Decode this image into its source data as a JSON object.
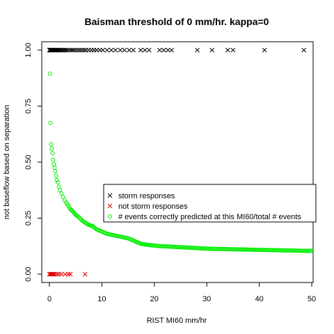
{
  "chart_data": {
    "type": "scatter",
    "title": "Baisman threshold of 0 mm/hr. kappa=0",
    "xlabel": "RIST MI60 mm/hr",
    "ylabel": "not baseflow based on separation",
    "xlim": [
      0,
      50
    ],
    "ylim": [
      0,
      1
    ],
    "x_ticks": [
      0,
      10,
      20,
      30,
      40,
      50
    ],
    "y_ticks": [
      "0.00",
      "0.25",
      "0.50",
      "0.75",
      "1.00"
    ],
    "legend_position": "right",
    "series": [
      {
        "name": "storm responses",
        "marker": "x",
        "color": "#000000",
        "points": [
          [
            0.0,
            1
          ],
          [
            0.1,
            1
          ],
          [
            0.2,
            1
          ],
          [
            0.3,
            1
          ],
          [
            0.4,
            1
          ],
          [
            0.5,
            1
          ],
          [
            0.6,
            1
          ],
          [
            0.8,
            1
          ],
          [
            1.0,
            1
          ],
          [
            1.2,
            1
          ],
          [
            1.4,
            1
          ],
          [
            1.6,
            1
          ],
          [
            1.8,
            1
          ],
          [
            2.0,
            1
          ],
          [
            2.2,
            1
          ],
          [
            2.5,
            1
          ],
          [
            2.8,
            1
          ],
          [
            3.0,
            1
          ],
          [
            3.3,
            1
          ],
          [
            3.6,
            1
          ],
          [
            4.0,
            1
          ],
          [
            4.3,
            1
          ],
          [
            4.6,
            1
          ],
          [
            5.0,
            1
          ],
          [
            5.4,
            1
          ],
          [
            5.8,
            1
          ],
          [
            6.2,
            1
          ],
          [
            6.6,
            1
          ],
          [
            7.0,
            1
          ],
          [
            7.5,
            1
          ],
          [
            8.0,
            1
          ],
          [
            8.5,
            1
          ],
          [
            9.0,
            1
          ],
          [
            9.6,
            1
          ],
          [
            10.2,
            1
          ],
          [
            11.0,
            1
          ],
          [
            11.8,
            1
          ],
          [
            12.6,
            1
          ],
          [
            13.5,
            1
          ],
          [
            14.3,
            1
          ],
          [
            15.2,
            1
          ],
          [
            16.0,
            1
          ],
          [
            17.4,
            1
          ],
          [
            18.2,
            1
          ],
          [
            19.0,
            1
          ],
          [
            21.0,
            1
          ],
          [
            21.8,
            1
          ],
          [
            22.6,
            1
          ],
          [
            23.3,
            1
          ],
          [
            28.2,
            1
          ],
          [
            31.0,
            1
          ],
          [
            34.0,
            1
          ],
          [
            35.0,
            1
          ],
          [
            41.0,
            1
          ],
          [
            48.5,
            1
          ]
        ]
      },
      {
        "name": "not storm responses",
        "marker": "x",
        "color": "#dd0000",
        "points": [
          [
            0.0,
            0
          ],
          [
            0.2,
            0
          ],
          [
            0.4,
            0
          ],
          [
            0.6,
            0
          ],
          [
            0.8,
            0
          ],
          [
            1.0,
            0
          ],
          [
            1.4,
            0
          ],
          [
            1.8,
            0
          ],
          [
            2.3,
            0
          ],
          [
            3.0,
            0
          ],
          [
            3.6,
            0
          ],
          [
            4.0,
            0
          ],
          [
            6.8,
            0
          ]
        ]
      },
      {
        "name": "# events correctly predicted at this MI60/total # events",
        "marker": "circle",
        "color": "#00ee00",
        "points": [
          [
            0.1,
            0.895
          ],
          [
            0.2,
            0.675
          ],
          [
            0.35,
            0.58
          ],
          [
            0.45,
            0.56
          ],
          [
            0.6,
            0.54
          ],
          [
            0.7,
            0.51
          ],
          [
            0.85,
            0.49
          ],
          [
            1.0,
            0.475
          ],
          [
            1.1,
            0.46
          ],
          [
            1.25,
            0.44
          ],
          [
            1.4,
            0.42
          ],
          [
            1.6,
            0.41
          ],
          [
            1.8,
            0.39
          ],
          [
            2.0,
            0.375
          ],
          [
            2.3,
            0.36
          ],
          [
            2.6,
            0.345
          ],
          [
            2.9,
            0.33
          ],
          [
            3.2,
            0.32
          ],
          [
            3.6,
            0.305
          ],
          [
            4.0,
            0.29
          ],
          [
            4.5,
            0.28
          ],
          [
            5.0,
            0.265
          ],
          [
            5.6,
            0.255
          ],
          [
            6.2,
            0.24
          ],
          [
            6.8,
            0.23
          ],
          [
            7.5,
            0.22
          ],
          [
            8.2,
            0.215
          ],
          [
            9.0,
            0.2
          ],
          [
            10.0,
            0.19
          ],
          [
            11.0,
            0.18
          ],
          [
            12.0,
            0.175
          ],
          [
            13.0,
            0.17
          ],
          [
            14.0,
            0.165
          ],
          [
            15.0,
            0.16
          ],
          [
            16.0,
            0.15
          ],
          [
            17.5,
            0.135
          ],
          [
            19.0,
            0.13
          ],
          [
            21.0,
            0.125
          ],
          [
            23.0,
            0.123
          ],
          [
            25.0,
            0.12
          ],
          [
            27.0,
            0.118
          ],
          [
            29.0,
            0.115
          ],
          [
            31.0,
            0.113
          ],
          [
            33.0,
            0.112
          ],
          [
            35.0,
            0.111
          ],
          [
            37.0,
            0.11
          ],
          [
            39.0,
            0.109
          ],
          [
            41.0,
            0.108
          ],
          [
            43.0,
            0.107
          ],
          [
            45.0,
            0.106
          ],
          [
            47.0,
            0.105
          ],
          [
            49.0,
            0.104
          ],
          [
            50.0,
            0.104
          ]
        ]
      }
    ]
  }
}
